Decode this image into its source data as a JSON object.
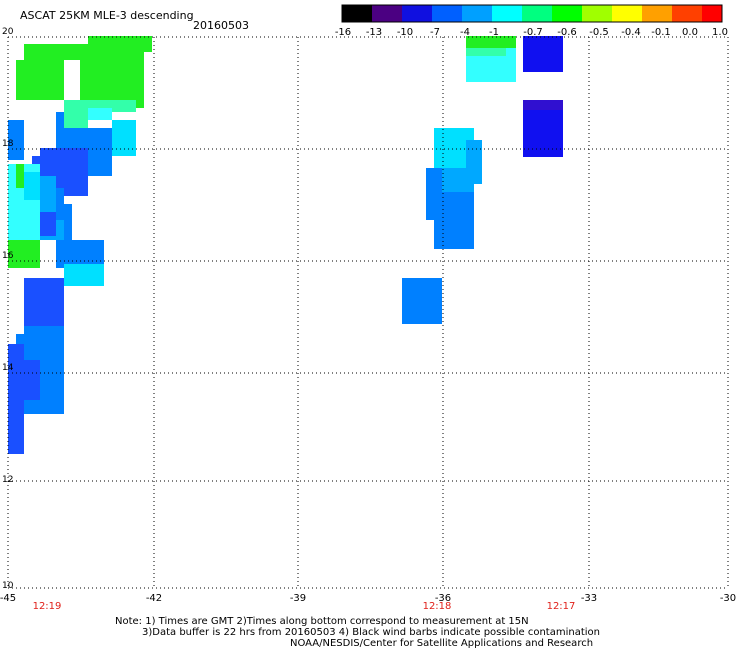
{
  "header": {
    "title": "ASCAT 25KM MLE-3 descending",
    "date": "20160503"
  },
  "colorbar": {
    "labels": [
      "-16",
      "-13",
      "-10",
      "-7",
      "-4",
      "-1",
      "-0.7",
      "-0.6",
      "-0.5",
      "-0.4",
      "-0.1",
      "0.0",
      "1.0"
    ],
    "colors": [
      "#000000",
      "#4b0082",
      "#1010e0",
      "#0060ff",
      "#00a0ff",
      "#00ffff",
      "#00ff80",
      "#00ff00",
      "#a0ff00",
      "#ffff00",
      "#ffa000",
      "#ff4000",
      "#ff0000"
    ]
  },
  "map": {
    "lat_labels": [
      "20",
      "18",
      "16",
      "14",
      "12",
      "10"
    ],
    "lon_labels": [
      "-45",
      "-42",
      "-39",
      "-36",
      "-33",
      "-30"
    ],
    "time_labels": [
      "12:19",
      "12:18",
      "12:17"
    ],
    "cell_colors": {
      "green": "#22ee22",
      "mint": "#33ffaa",
      "cyan": "#33ffff",
      "light_cyan": "#00e0ff",
      "sky": "#00a8ff",
      "azure": "#0080ff",
      "blue": "#1a50ff",
      "deep_blue": "#1010f0",
      "indigo": "#3010d0"
    }
  },
  "footer": {
    "note_line1": "Note: 1) Times are GMT 2)Times along bottom correspond to measurement at 15N",
    "note_line2": "3)Data buffer is 22 hrs from 20160503 4) Black wind barbs indicate possible contamination",
    "note_line3": "NOAA/NESDIS/Center for Satellite Applications and Research"
  }
}
